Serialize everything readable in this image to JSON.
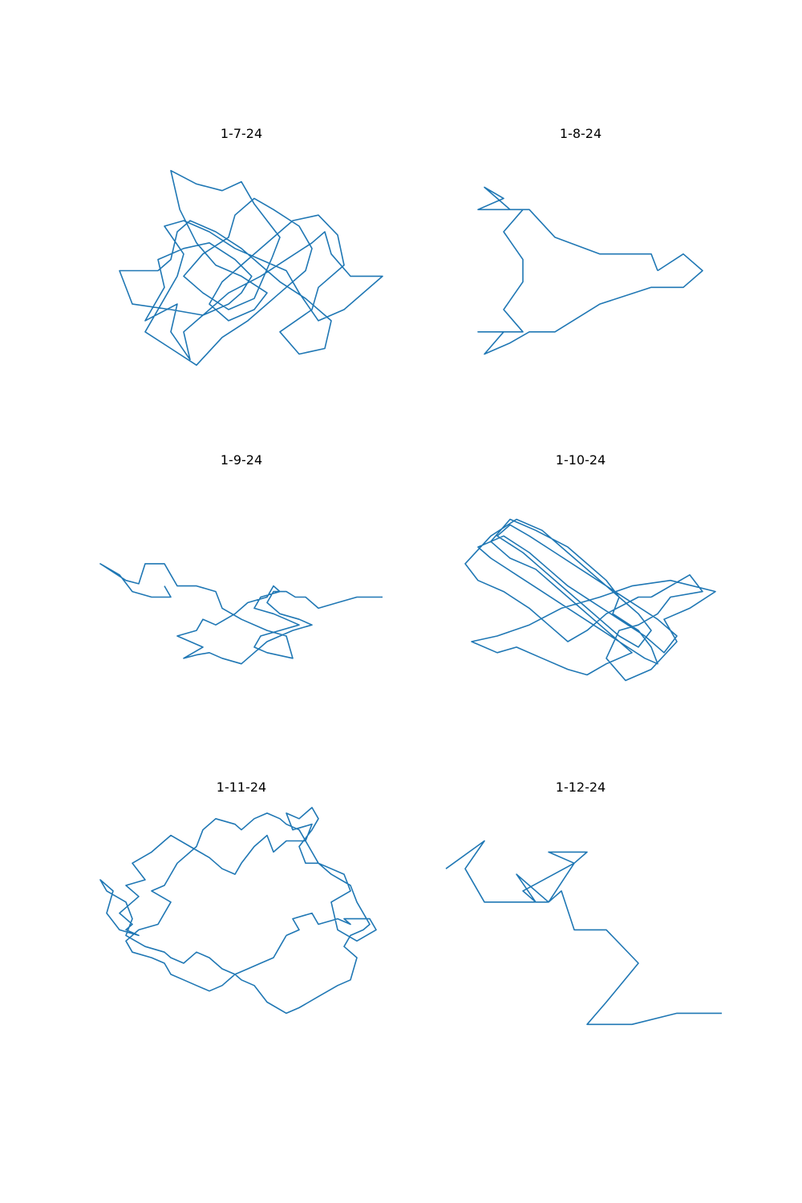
{
  "figure": {
    "line_color": "#1f77b4",
    "background": "#ffffff",
    "axes_visible": false,
    "grid": false
  },
  "chart_data": [
    {
      "type": "line",
      "title": "1-7-24",
      "xlim": [
        -1.1,
        1.1
      ],
      "ylim": [
        -1.1,
        1.1
      ],
      "x": [
        0.24,
        0.3,
        0.2,
        0.1,
        0.0,
        -0.15,
        -0.35,
        -0.55,
        -0.48,
        -0.35,
        -0.2,
        0.0,
        0.2,
        0.1,
        -0.1,
        -0.25,
        -0.15,
        0.05,
        0.25,
        0.4,
        0.6,
        0.75,
        0.8,
        0.6,
        0.55,
        0.3,
        0.45,
        0.65,
        0.7,
        0.5,
        0.3,
        0.15,
        0.0,
        -0.2,
        -0.4,
        -0.5,
        -0.55,
        -0.65,
        -0.95,
        -0.85,
        -0.55,
        -0.3,
        -0.1,
        0.0,
        0.08,
        -0.05,
        -0.25,
        -0.45,
        -0.65,
        -0.6,
        -0.75,
        -0.5,
        -0.55,
        -0.4,
        -0.45,
        -0.3,
        -0.1,
        0.15,
        0.35,
        0.55,
        0.65,
        0.7,
        0.85,
        1.1,
        0.8,
        0.6,
        0.45,
        0.35,
        0.15,
        -0.05,
        -0.25,
        -0.45,
        -0.6,
        -0.45,
        -0.5,
        -0.6,
        -0.75,
        -0.55,
        -0.35,
        -0.15,
        0.05,
        0.3,
        0.5,
        0.55,
        0.45,
        0.25,
        0.1,
        -0.05,
        -0.1,
        -0.3,
        -0.45,
        -0.3,
        -0.1,
        0.1,
        0.24
      ],
      "y": [
        0.12,
        0.3,
        0.45,
        0.6,
        0.8,
        0.72,
        0.78,
        0.9,
        0.55,
        0.25,
        0.05,
        -0.05,
        -0.2,
        -0.35,
        -0.45,
        -0.3,
        -0.1,
        0.1,
        0.3,
        0.45,
        0.5,
        0.32,
        0.05,
        -0.15,
        -0.35,
        -0.55,
        -0.75,
        -0.7,
        -0.45,
        -0.25,
        -0.1,
        0.05,
        0.2,
        0.35,
        0.45,
        0.35,
        0.1,
        0.0,
        0.0,
        -0.3,
        -0.35,
        -0.4,
        -0.3,
        -0.2,
        -0.05,
        0.1,
        0.25,
        0.2,
        0.1,
        -0.15,
        -0.45,
        -0.3,
        -0.55,
        -0.8,
        -0.55,
        -0.4,
        -0.2,
        -0.05,
        0.1,
        0.25,
        0.35,
        0.15,
        -0.05,
        -0.05,
        -0.35,
        -0.45,
        -0.2,
        0.0,
        0.1,
        0.2,
        0.35,
        0.45,
        0.4,
        0.15,
        -0.05,
        -0.25,
        -0.55,
        -0.7,
        -0.85,
        -0.6,
        -0.45,
        -0.2,
        0.0,
        0.2,
        0.4,
        0.55,
        0.65,
        0.5,
        0.3,
        0.15,
        -0.05,
        -0.2,
        -0.35,
        -0.25,
        0.12
      ]
    },
    {
      "type": "line",
      "title": "1-8-24",
      "xlim": [
        -1.1,
        1.1
      ],
      "ylim": [
        -1.1,
        1.1
      ],
      "x": [
        0.6,
        0.8,
        0.95,
        0.8,
        0.95,
        0.8,
        0.55,
        0.15,
        -0.2,
        -0.4,
        -0.55,
        -0.75,
        -0.6,
        -0.8,
        -0.45,
        -0.6,
        -0.45,
        -0.45,
        -0.6,
        -0.45,
        -0.6,
        -0.8,
        -0.6,
        -0.75,
        -0.55,
        -0.4,
        -0.2,
        0.15,
        0.55,
        0.6
      ],
      "y": [
        0.0,
        0.15,
        0.0,
        0.15,
        0.0,
        -0.15,
        -0.15,
        -0.3,
        -0.55,
        -0.55,
        -0.65,
        -0.75,
        -0.55,
        -0.55,
        -0.55,
        -0.35,
        -0.1,
        0.1,
        0.35,
        0.55,
        0.55,
        0.55,
        0.65,
        0.75,
        0.55,
        0.55,
        0.3,
        0.15,
        0.15,
        0.0
      ]
    },
    {
      "type": "line",
      "title": "1-9-24",
      "xlim": [
        -1.1,
        1.1
      ],
      "ylim": [
        -1.1,
        1.1
      ],
      "x": [
        1.1,
        0.9,
        0.75,
        0.6,
        0.5,
        0.42,
        0.35,
        0.25,
        0.2,
        0.3,
        0.45,
        0.55,
        0.4,
        0.2,
        0.1,
        0.0,
        -0.15,
        -0.25,
        -0.35,
        -0.45,
        -0.3,
        -0.5,
        -0.35,
        -0.3,
        -0.2,
        -0.05,
        0.05,
        0.2,
        0.25,
        0.3,
        0.15,
        0.1,
        0.25,
        0.35,
        0.45,
        0.3,
        0.15,
        0.1,
        0.2,
        0.4,
        0.35,
        0.2,
        0.0,
        -0.15,
        -0.2,
        -0.35,
        -0.5,
        -0.55,
        -0.6,
        -0.75,
        -0.8,
        -0.9,
        -1.1,
        -0.95,
        -0.85,
        -0.7,
        -0.55,
        -0.6
      ],
      "y": [
        0.0,
        0.0,
        -0.05,
        -0.1,
        0.0,
        0.0,
        0.05,
        0.05,
        -0.05,
        -0.15,
        -0.2,
        -0.25,
        -0.3,
        -0.4,
        -0.5,
        -0.6,
        -0.55,
        -0.5,
        -0.52,
        -0.55,
        -0.45,
        -0.35,
        -0.3,
        -0.2,
        -0.25,
        -0.15,
        -0.05,
        0.0,
        0.1,
        0.05,
        0.0,
        -0.1,
        -0.15,
        -0.2,
        -0.25,
        -0.3,
        -0.35,
        -0.45,
        -0.5,
        -0.55,
        -0.35,
        -0.3,
        -0.2,
        -0.1,
        0.05,
        0.1,
        0.1,
        0.2,
        0.3,
        0.3,
        0.12,
        0.15,
        0.3,
        0.2,
        0.05,
        0.0,
        0.0,
        0.1
      ]
    },
    {
      "type": "line",
      "title": "1-10-24",
      "xlim": [
        -1.1,
        1.1
      ],
      "ylim": [
        -1.1,
        1.1
      ],
      "x": [
        0.55,
        0.85,
        0.95,
        0.7,
        0.6,
        0.45,
        0.3,
        0.2,
        0.35,
        0.55,
        0.75,
        0.65,
        0.85,
        1.05,
        0.7,
        0.4,
        0.15,
        -0.15,
        -0.4,
        -0.65,
        -0.85,
        -0.65,
        -0.5,
        -0.3,
        -0.1,
        0.05,
        0.2,
        0.4,
        0.25,
        0.1,
        -0.05,
        -0.2,
        -0.35,
        -0.55,
        -0.7,
        -0.55,
        -0.35,
        -0.1,
        0.05,
        0.2,
        0.3,
        0.25,
        0.45,
        0.55,
        0.6,
        0.5,
        0.3,
        0.1,
        -0.1,
        -0.3,
        -0.5,
        -0.7,
        -0.8,
        -0.6,
        -0.4,
        -0.25,
        -0.1,
        0.1,
        0.3,
        0.5,
        0.65,
        0.75,
        0.6,
        0.4,
        0.2,
        0.0,
        -0.2,
        -0.4,
        -0.55,
        -0.65,
        -0.45,
        -0.3,
        -0.15,
        0.0,
        0.15,
        0.3,
        0.45,
        0.55,
        0.45,
        0.3,
        0.15,
        0.0,
        -0.15,
        -0.3,
        -0.5,
        -0.7,
        -0.9,
        -0.8,
        -0.6,
        -0.4,
        -0.25,
        -0.1,
        0.05,
        0.2,
        0.45,
        0.55
      ],
      "y": [
        0.0,
        0.2,
        0.05,
        0.0,
        -0.15,
        -0.25,
        -0.3,
        -0.55,
        -0.75,
        -0.65,
        -0.4,
        -0.2,
        -0.1,
        0.05,
        0.15,
        0.1,
        0.0,
        -0.1,
        -0.25,
        -0.35,
        -0.4,
        -0.5,
        -0.45,
        -0.55,
        -0.65,
        -0.7,
        -0.6,
        -0.5,
        -0.35,
        -0.2,
        -0.05,
        0.1,
        0.25,
        0.35,
        0.5,
        0.7,
        0.6,
        0.45,
        0.3,
        0.15,
        0.0,
        -0.15,
        -0.3,
        -0.45,
        -0.6,
        -0.55,
        -0.4,
        -0.25,
        -0.1,
        0.05,
        0.2,
        0.35,
        0.45,
        0.55,
        0.4,
        0.25,
        0.1,
        -0.05,
        -0.2,
        -0.35,
        -0.5,
        -0.35,
        -0.2,
        -0.05,
        0.1,
        0.25,
        0.4,
        0.55,
        0.65,
        0.55,
        0.4,
        0.25,
        0.1,
        -0.05,
        -0.2,
        -0.35,
        -0.45,
        -0.3,
        -0.15,
        0.0,
        0.15,
        0.3,
        0.45,
        0.6,
        0.7,
        0.55,
        0.3,
        0.15,
        0.05,
        -0.1,
        -0.25,
        -0.4,
        -0.3,
        -0.15,
        0.0,
        0.0
      ]
    },
    {
      "type": "line",
      "title": "1-11-24",
      "xlim": [
        -1.1,
        1.1
      ],
      "ylim": [
        -1.1,
        1.1
      ],
      "x": [
        0.35,
        0.45,
        0.4,
        0.55,
        0.6,
        0.75,
        0.85,
        0.8,
        1.0,
        1.05,
        0.9,
        0.75,
        0.7,
        0.85,
        0.8,
        0.6,
        0.5,
        0.45,
        0.55,
        0.6,
        0.55,
        0.45,
        0.35,
        0.4,
        0.55,
        0.5,
        0.35,
        0.25,
        0.2,
        0.1,
        0.0,
        -0.05,
        -0.15,
        -0.25,
        -0.4,
        -0.55,
        -0.6,
        -0.7,
        -0.85,
        -0.75,
        -0.9,
        -0.8,
        -0.9,
        -0.95,
        -0.85,
        -0.9,
        -0.8,
        -0.95,
        -1.05,
        -1.0,
        -1.1,
        -1.05,
        -0.9,
        -0.85,
        -0.9,
        -0.75,
        -0.6,
        -0.55,
        -0.45,
        -0.35,
        -0.25,
        -0.15,
        -0.05,
        0.0,
        0.1,
        0.2,
        0.35,
        0.45,
        0.6,
        0.75,
        0.85,
        0.9,
        0.8,
        0.85,
        0.95,
        1.0,
        0.95,
        0.9,
        0.85,
        0.7,
        0.6,
        0.55,
        0.5,
        0.45,
        0.35,
        0.3,
        0.2,
        0.1,
        0.0,
        -0.05,
        -0.2,
        -0.3,
        -0.35,
        -0.5,
        -0.55,
        -0.6,
        -0.7,
        -0.55,
        -0.65,
        -0.8,
        -0.9,
        -0.85,
        -0.7,
        -0.6,
        -0.55,
        -0.45,
        -0.35,
        -0.25,
        -0.15,
        -0.05,
        0.05,
        0.15,
        0.25,
        0.3,
        0.35
      ],
      "y": [
        -0.1,
        -0.05,
        0.05,
        0.1,
        0.0,
        0.05,
        0.0,
        0.05,
        0.05,
        -0.05,
        -0.15,
        -0.05,
        0.2,
        0.3,
        0.45,
        0.55,
        0.55,
        0.7,
        0.85,
        0.95,
        1.05,
        0.95,
        1.0,
        0.85,
        0.9,
        0.75,
        0.75,
        0.65,
        0.8,
        0.7,
        0.55,
        0.45,
        0.5,
        0.6,
        0.7,
        0.8,
        0.75,
        0.65,
        0.55,
        0.4,
        0.35,
        0.25,
        0.15,
        0.1,
        0.0,
        -0.05,
        -0.1,
        -0.05,
        0.1,
        0.3,
        0.4,
        0.3,
        0.2,
        0.05,
        -0.1,
        -0.2,
        -0.25,
        -0.3,
        -0.35,
        -0.25,
        -0.3,
        -0.4,
        -0.45,
        -0.5,
        -0.55,
        -0.7,
        -0.8,
        -0.75,
        -0.65,
        -0.55,
        -0.5,
        -0.3,
        -0.2,
        -0.1,
        -0.05,
        0.0,
        0.1,
        0.2,
        0.35,
        0.45,
        0.55,
        0.65,
        0.75,
        0.85,
        0.9,
        0.95,
        1.0,
        0.95,
        0.85,
        0.9,
        0.95,
        0.85,
        0.7,
        0.55,
        0.45,
        0.35,
        0.3,
        0.2,
        0.0,
        -0.05,
        -0.15,
        -0.25,
        -0.3,
        -0.35,
        -0.45,
        -0.5,
        -0.55,
        -0.6,
        -0.55,
        -0.45,
        -0.4,
        -0.35,
        -0.3,
        -0.2,
        -0.1
      ]
    },
    {
      "type": "line",
      "title": "1-12-24",
      "xlim": [
        -1.1,
        1.1
      ],
      "ylim": [
        -1.1,
        1.1
      ],
      "x": [
        1.1,
        0.75,
        0.4,
        0.05,
        0.2,
        0.45,
        0.2,
        -0.05,
        -0.15,
        -0.25,
        -0.5,
        -0.35,
        -0.25,
        -0.05,
        0.05,
        -0.25,
        -0.05,
        -0.45,
        -0.35,
        -0.55,
        -0.75,
        -0.9,
        -0.75,
        -1.05
      ],
      "y": [
        -0.8,
        -0.8,
        -0.9,
        -0.9,
        -0.7,
        -0.35,
        -0.05,
        -0.05,
        0.3,
        0.2,
        0.45,
        0.2,
        0.2,
        0.55,
        0.65,
        0.65,
        0.55,
        0.3,
        0.2,
        0.2,
        0.2,
        0.5,
        0.75,
        0.5
      ]
    }
  ]
}
